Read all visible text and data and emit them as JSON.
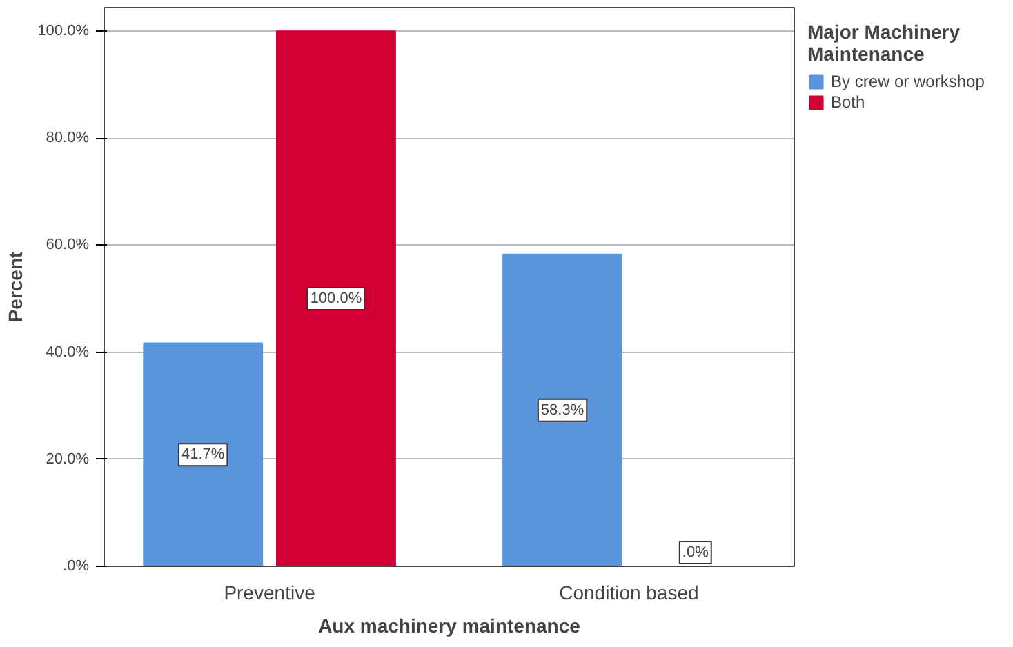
{
  "chart_data": {
    "type": "bar",
    "xlabel": "Aux machinery maintenance",
    "ylabel": "Percent",
    "legend_title": "Major Machinery Maintenance",
    "categories": [
      "Preventive",
      "Condition based"
    ],
    "series": [
      {
        "name": "By crew or workshop",
        "color": "#5a94dc",
        "values": [
          41.7,
          58.3
        ],
        "value_labels": [
          "41.7%",
          "58.3%"
        ]
      },
      {
        "name": "Both",
        "color": "#d20032",
        "values": [
          100.0,
          0.0
        ],
        "value_labels": [
          "100.0%",
          ".0%"
        ]
      }
    ],
    "ylim": [
      0,
      104.4
    ],
    "yticks": [
      {
        "value": 0,
        "label": ".0%"
      },
      {
        "value": 20,
        "label": "20.0%"
      },
      {
        "value": 40,
        "label": "40.0%"
      },
      {
        "value": 60,
        "label": "60.0%"
      },
      {
        "value": 80,
        "label": "80.0%"
      },
      {
        "value": 100,
        "label": "100.0%"
      }
    ],
    "grid": "y",
    "legend": "right"
  }
}
